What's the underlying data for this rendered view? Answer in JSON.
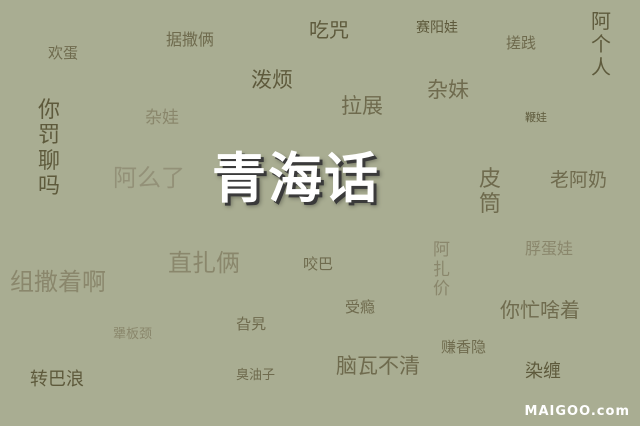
{
  "title": "青海话",
  "logo": "MAIGOO.com",
  "words": [
    {
      "id": "w1",
      "text": "欢蛋"
    },
    {
      "id": "w2",
      "text": "据撒俩"
    },
    {
      "id": "w3",
      "text": "吃咒"
    },
    {
      "id": "w4",
      "text": "赛阳娃"
    },
    {
      "id": "w5",
      "text": "搓践"
    },
    {
      "id": "w6",
      "text": "阿个人"
    },
    {
      "id": "w7",
      "text": "泼烦"
    },
    {
      "id": "w8",
      "text": "杂妹"
    },
    {
      "id": "w9",
      "text": "你罚聊吗"
    },
    {
      "id": "w10",
      "text": "杂娃"
    },
    {
      "id": "w11",
      "text": "拉展"
    },
    {
      "id": "w12",
      "text": "鞭娃"
    },
    {
      "id": "w13",
      "text": "阿么了"
    },
    {
      "id": "w14",
      "text": "皮筒"
    },
    {
      "id": "w15",
      "text": "老阿奶"
    },
    {
      "id": "w16",
      "text": "阿扎价"
    },
    {
      "id": "w17",
      "text": "脬蛋娃"
    },
    {
      "id": "w18",
      "text": "组撒着啊"
    },
    {
      "id": "w19",
      "text": "直扎俩"
    },
    {
      "id": "w20",
      "text": "咬巴"
    },
    {
      "id": "w21",
      "text": "受瘾"
    },
    {
      "id": "w22",
      "text": "你忙啥着"
    },
    {
      "id": "w23",
      "text": "犟板颈"
    },
    {
      "id": "w24",
      "text": "旮旯"
    },
    {
      "id": "w25",
      "text": "赚香隐"
    },
    {
      "id": "w26",
      "text": "转巴浪"
    },
    {
      "id": "w27",
      "text": "臭油子"
    },
    {
      "id": "w28",
      "text": "脑瓦不清"
    },
    {
      "id": "w29",
      "text": "染缠"
    }
  ]
}
